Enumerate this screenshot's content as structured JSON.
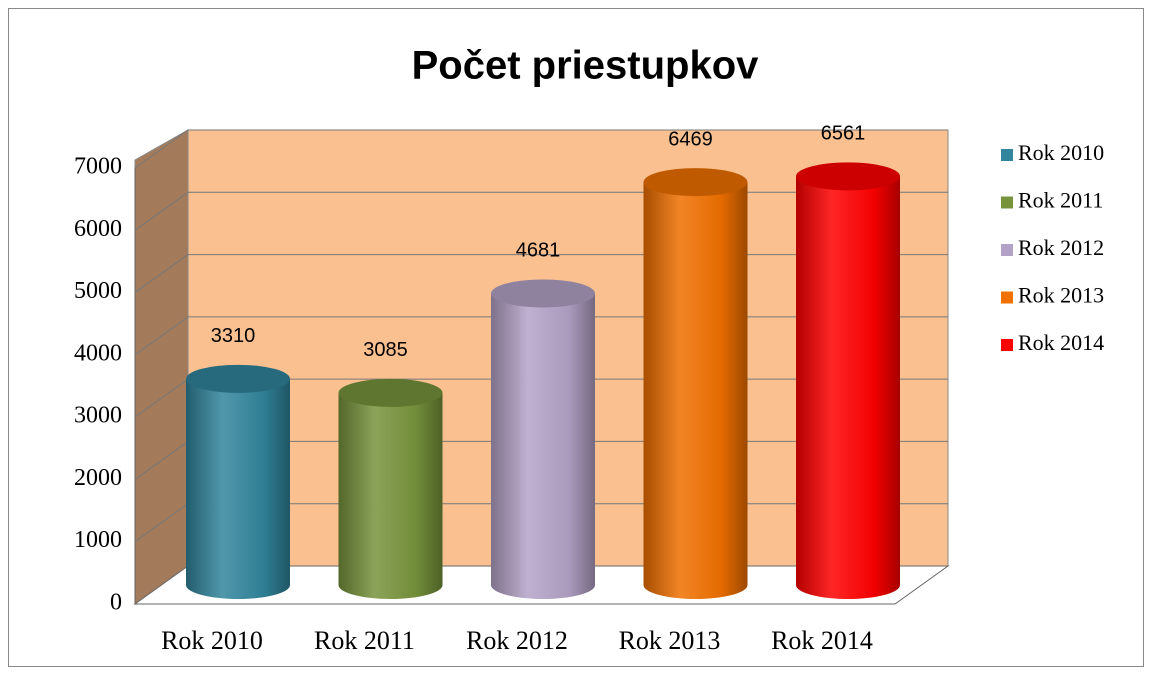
{
  "chart_data": {
    "type": "bar",
    "title": "Počet priestupkov",
    "categories": [
      "Rok 2010",
      "Rok 2011",
      "Rok 2012",
      "Rok 2013",
      "Rok 2014"
    ],
    "values": [
      3310,
      3085,
      4681,
      6469,
      6561
    ],
    "colors": [
      "#31859c",
      "#77933c",
      "#b3a2c7",
      "#f07000",
      "#ff0000"
    ],
    "ylim": [
      0,
      7000
    ],
    "yticks": [
      0,
      1000,
      2000,
      3000,
      4000,
      5000,
      6000,
      7000
    ],
    "grid": true,
    "legend": "right"
  }
}
